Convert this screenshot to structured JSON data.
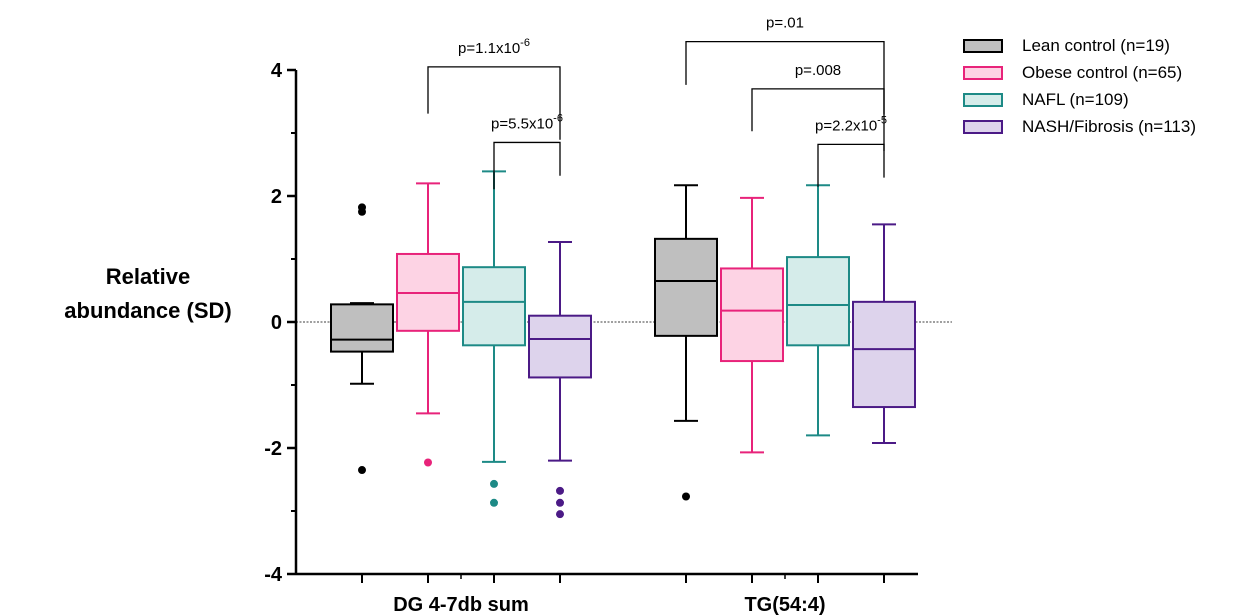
{
  "chart_data": {
    "type": "box",
    "ylabel": [
      "Relative",
      "abundance (SD)"
    ],
    "ylim": [
      -4,
      4
    ],
    "yticks": [
      "4",
      "2",
      "0",
      "-2",
      "-4"
    ],
    "reference_line_y": 0,
    "categories": [
      "DG 4-7db sum",
      "TG(54:4)"
    ],
    "series": [
      {
        "name": "Lean control (n=19)",
        "color": "#000000",
        "fill": "#bfbfbf"
      },
      {
        "name": "Obese control (n=65)",
        "color": "#e8237a",
        "fill": "#fdd3e4"
      },
      {
        "name": "NAFL (n=109)",
        "color": "#1d8a86",
        "fill": "#d5ecea"
      },
      {
        "name": "NASH/Fibrosis (n=113)",
        "color": "#4b1a86",
        "fill": "#ddd3ec"
      }
    ],
    "boxes": [
      {
        "category": "DG 4-7db sum",
        "series": 0,
        "whisker_low": -0.98,
        "q1": -0.47,
        "median": -0.28,
        "q3": 0.28,
        "whisker_high": 0.3,
        "outliers": [
          1.82,
          1.75,
          -2.35
        ]
      },
      {
        "category": "DG 4-7db sum",
        "series": 1,
        "whisker_low": -1.45,
        "q1": -0.14,
        "median": 0.46,
        "q3": 1.08,
        "whisker_high": 2.2,
        "outliers": [
          -2.23
        ]
      },
      {
        "category": "DG 4-7db sum",
        "series": 2,
        "whisker_low": -2.22,
        "q1": -0.37,
        "median": 0.32,
        "q3": 0.87,
        "whisker_high": 2.39,
        "outliers": [
          -2.57,
          -2.87
        ]
      },
      {
        "category": "DG 4-7db sum",
        "series": 3,
        "whisker_low": -2.2,
        "q1": -0.88,
        "median": -0.27,
        "q3": 0.1,
        "whisker_high": 1.27,
        "outliers": [
          -2.68,
          -2.87,
          -3.05
        ]
      },
      {
        "category": "TG(54:4)",
        "series": 0,
        "whisker_low": -1.57,
        "q1": -0.22,
        "median": 0.65,
        "q3": 1.32,
        "whisker_high": 2.17,
        "outliers": [
          -2.77
        ]
      },
      {
        "category": "TG(54:4)",
        "series": 1,
        "whisker_low": -2.07,
        "q1": -0.62,
        "median": 0.18,
        "q3": 0.85,
        "whisker_high": 1.97,
        "outliers": []
      },
      {
        "category": "TG(54:4)",
        "series": 2,
        "whisker_low": -1.8,
        "q1": -0.37,
        "median": 0.27,
        "q3": 1.03,
        "whisker_high": 2.17,
        "outliers": []
      },
      {
        "category": "TG(54:4)",
        "series": 3,
        "whisker_low": -1.92,
        "q1": -1.35,
        "median": -0.43,
        "q3": 0.32,
        "whisker_high": 1.55,
        "outliers": []
      }
    ],
    "annotations": [
      {
        "category": "DG 4-7db sum",
        "from_series": 1,
        "to_series": 3,
        "bracket_y": 4.05,
        "left_end": 2.6,
        "right_end": 4.05,
        "label_base": "p=1.1x10",
        "label_exp": "-6"
      },
      {
        "category": "DG 4-7db sum",
        "from_series": 2,
        "to_series": 3,
        "bracket_y": 2.85,
        "left_end": 2.6,
        "right_end": 1.85,
        "label_base": "p=5.5x10",
        "label_exp": "-6"
      },
      {
        "category": "TG(54:4)",
        "from_series": 0,
        "to_series": 3,
        "bracket_y": 4.45,
        "left_end": 2.4,
        "right_end": 4.05,
        "label_base": "p=.01",
        "label_exp": ""
      },
      {
        "category": "TG(54:4)",
        "from_series": 1,
        "to_series": 3,
        "bracket_y": 3.7,
        "left_end": 2.35,
        "right_end": 3.45,
        "label_base": "p=.008",
        "label_exp": ""
      },
      {
        "category": "TG(54:4)",
        "from_series": 2,
        "to_series": 3,
        "bracket_y": 2.82,
        "left_end": 2.35,
        "right_end": 1.85,
        "label_base": "p=2.2x10",
        "label_exp": "-5"
      }
    ],
    "legend_position": "top-right",
    "grid": false
  }
}
